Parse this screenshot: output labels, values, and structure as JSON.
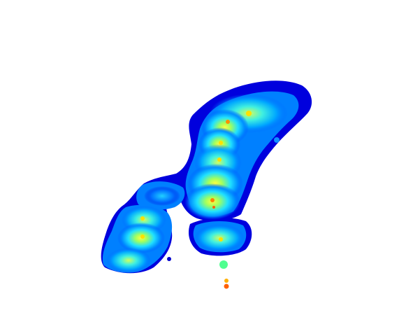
{
  "image": {
    "background_color": "#ffffff",
    "colormap": [
      "#00008f",
      "#0000ff",
      "#0080ff",
      "#00ffff",
      "#80ff80",
      "#ffff00",
      "#ff8000",
      "#ff0000"
    ],
    "description_tag": "density-heat-cloud"
  }
}
